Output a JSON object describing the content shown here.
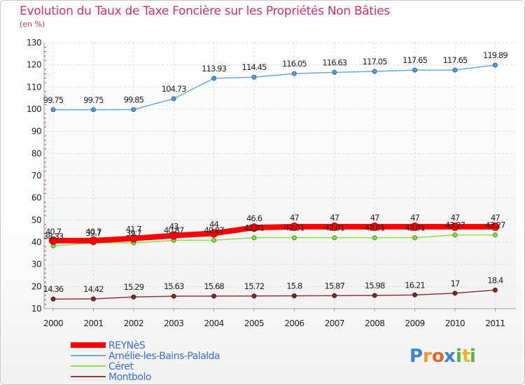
{
  "chart_data": {
    "type": "line",
    "title": "Evolution du Taux de Taxe Foncière sur les Propriétés Non Bâties",
    "subtitle": "(en %)",
    "xlabel": "",
    "ylabel": "",
    "ylim": [
      10,
      130
    ],
    "y_ticks": [
      "10",
      "20",
      "30",
      "40",
      "50",
      "60",
      "70",
      "80",
      "90",
      "100",
      "110",
      "120",
      "130"
    ],
    "categories": [
      "2000",
      "2001",
      "2002",
      "2003",
      "2004",
      "2005",
      "2006",
      "2007",
      "2008",
      "2009",
      "2010",
      "2011"
    ],
    "grid": true,
    "legend_position": "bottom-left",
    "series": [
      {
        "name": "REYNèS",
        "color": "#ff0000",
        "values": [
          40.7,
          40.7,
          41.7,
          43,
          44,
          46.6,
          47,
          47,
          47,
          47,
          47,
          47
        ],
        "labels": [
          "40.7",
          "40.7",
          "41.7",
          "43",
          "44",
          "46.6",
          "47",
          "47",
          "47",
          "47",
          "47",
          "47"
        ]
      },
      {
        "name": "Amélie-les-Bains-Palalda",
        "color": "#6aaad8",
        "values": [
          99.75,
          99.75,
          99.85,
          104.73,
          113.93,
          114.45,
          116.05,
          116.63,
          117.05,
          117.65,
          117.65,
          119.89
        ],
        "labels": [
          "99.75",
          "99.75",
          "99.85",
          "104.73",
          "113.93",
          "114.45",
          "116.05",
          "116.63",
          "117.05",
          "117.65",
          "117.65",
          "119.89"
        ]
      },
      {
        "name": "Céret",
        "color": "#90dc50",
        "values": [
          38.33,
          39.7,
          39.7,
          40.87,
          40.87,
          42.01,
          42.01,
          42.01,
          42.01,
          42.01,
          43.27,
          43.27
        ],
        "labels": [
          "38.33",
          "39.7",
          "39.7",
          "40.87",
          "40.87",
          "42.01",
          "42.01",
          "42.01",
          "42.01",
          "42.01",
          "43.27",
          "43.27"
        ]
      },
      {
        "name": "Montbolo",
        "color": "#8a3a3a",
        "values": [
          14.36,
          14.42,
          15.29,
          15.63,
          15.68,
          15.72,
          15.8,
          15.87,
          15.98,
          16.21,
          17,
          18.4
        ],
        "labels": [
          "14.36",
          "14.42",
          "15.29",
          "15.63",
          "15.68",
          "15.72",
          "15.8",
          "15.87",
          "15.98",
          "16.21",
          "17",
          "18.4"
        ]
      }
    ]
  },
  "brand": {
    "letters": [
      "P",
      "r",
      "o",
      "x",
      "i",
      "t",
      "i"
    ],
    "colors": [
      "#3c82d2",
      "#f09628",
      "#e66428",
      "#3c82d2",
      "#50b43c",
      "#f0b428",
      "#50b43c"
    ]
  }
}
